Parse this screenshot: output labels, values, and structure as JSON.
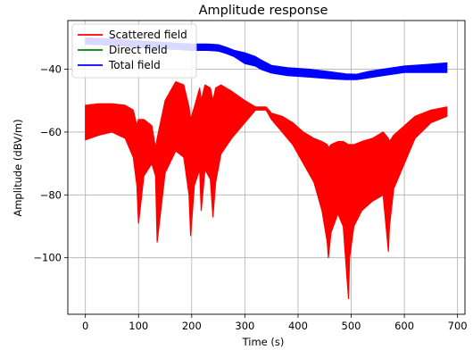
{
  "chart_data": {
    "type": "line",
    "title": "Amplitude response",
    "xlabel": "Time (s)",
    "ylabel": "Amplitude (dBV/m)",
    "xlim": [
      -33,
      714
    ],
    "ylim": [
      -118,
      -24.5
    ],
    "xticks": [
      0,
      100,
      200,
      300,
      400,
      500,
      600,
      700
    ],
    "xtick_labels": [
      "0",
      "100",
      "200",
      "300",
      "400",
      "500",
      "600",
      "700"
    ],
    "yticks": [
      -100,
      -80,
      -60,
      -40
    ],
    "ytick_labels": [
      "−100",
      "−80",
      "−60",
      "−40"
    ],
    "grid": true,
    "legend_position": "top-left",
    "series": [
      {
        "name": "Scattered field",
        "color": "#ff0000",
        "style": "band",
        "x": [
          0,
          25,
          50,
          75,
          90,
          97,
          100,
          110,
          125,
          132,
          135,
          150,
          170,
          185,
          195,
          198,
          205,
          215,
          218,
          225,
          235,
          240,
          245,
          255,
          275,
          300,
          320,
          340,
          350,
          370,
          390,
          410,
          430,
          445,
          455,
          457,
          462,
          475,
          485,
          495,
          497,
          505,
          520,
          540,
          560,
          570,
          572,
          580,
          600,
          620,
          650,
          680
        ],
        "upper": [
          -51.5,
          -51,
          -51,
          -51.5,
          -53,
          -58,
          -56,
          -56,
          -58,
          -65,
          -62,
          -50,
          -44,
          -45,
          -52,
          -56,
          -52,
          -46,
          -50,
          -45,
          -46,
          -50,
          -46,
          -45,
          -47,
          -50,
          -52,
          -52,
          -54,
          -55,
          -57,
          -60,
          -62,
          -63,
          -64,
          -65,
          -64,
          -63,
          -63,
          -64,
          -64,
          -64,
          -63,
          -62,
          -60,
          -62,
          -63,
          -61,
          -58,
          -55,
          -53,
          -52
        ],
        "lower": [
          -62.5,
          -61,
          -60,
          -62,
          -68,
          -77,
          -89,
          -74,
          -70,
          -74,
          -95,
          -73,
          -66,
          -68,
          -80,
          -93,
          -77,
          -72,
          -85,
          -72,
          -75,
          -87,
          -76,
          -67,
          -62,
          -57,
          -53,
          -53,
          -56,
          -60,
          -64,
          -70,
          -76,
          -85,
          -95,
          -100,
          -92,
          -86,
          -90,
          -113,
          -100,
          -90,
          -85,
          -82,
          -80,
          -98,
          -90,
          -78,
          -70,
          -62,
          -57,
          -55
        ]
      },
      {
        "name": "Direct field",
        "color": "#008000",
        "style": "line",
        "x": [
          0,
          50,
          100,
          150,
          200,
          250,
          300,
          330,
          360,
          400,
          450,
          500,
          550,
          600,
          650,
          680
        ],
        "y": [
          -31,
          -31.3,
          -31.6,
          -32,
          -32.8,
          -34.2,
          -36.3,
          -38.2,
          -39.6,
          -40.5,
          -41.5,
          -42,
          -41.5,
          -40.5,
          -39.8,
          -39.6
        ]
      },
      {
        "name": "Total field",
        "color": "#0000ff",
        "style": "band",
        "x": [
          0,
          30,
          60,
          100,
          150,
          180,
          200,
          230,
          250,
          265,
          280,
          300,
          320,
          330,
          350,
          380,
          420,
          460,
          490,
          510,
          530,
          560,
          600,
          640,
          680
        ],
        "upper": [
          -30,
          -30.2,
          -30.5,
          -31,
          -31.5,
          -31.8,
          -32,
          -32,
          -32.2,
          -33,
          -34,
          -34.8,
          -36,
          -37,
          -38.8,
          -39.5,
          -40,
          -40.8,
          -41.5,
          -41.6,
          -40.8,
          -40,
          -39,
          -38.5,
          -38
        ],
        "lower": [
          -32,
          -32.2,
          -32.5,
          -33,
          -33.5,
          -33.8,
          -34,
          -34,
          -34.2,
          -35,
          -36,
          -38.2,
          -39,
          -40,
          -41.2,
          -42,
          -42.5,
          -43,
          -43.3,
          -43.3,
          -42.8,
          -42,
          -41,
          -41,
          -41
        ]
      }
    ]
  }
}
